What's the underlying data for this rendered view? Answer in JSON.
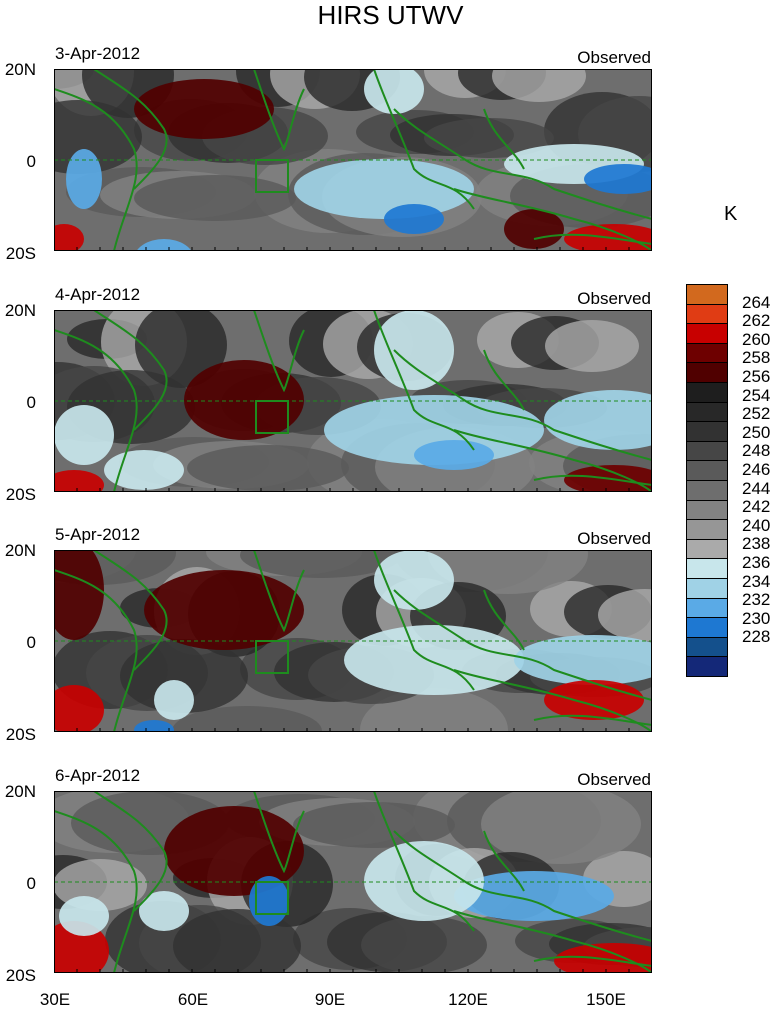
{
  "title": "HIRS UTWV",
  "unit_label": "K",
  "panels": [
    {
      "date": "3-Apr-2012",
      "label": "Observed"
    },
    {
      "date": "4-Apr-2012",
      "label": "Observed"
    },
    {
      "date": "5-Apr-2012",
      "label": "Observed"
    },
    {
      "date": "6-Apr-2012",
      "label": "Observed"
    }
  ],
  "y_ticks": [
    "20N",
    "0",
    "20S"
  ],
  "x_ticks": [
    "30E",
    "60E",
    "90E",
    "120E",
    "150E"
  ],
  "colorbar": {
    "levels": [
      "264",
      "262",
      "260",
      "258",
      "256",
      "254",
      "252",
      "250",
      "248",
      "246",
      "244",
      "242",
      "240",
      "238",
      "236",
      "234",
      "232",
      "230",
      "228"
    ],
    "colors": [
      "#d2691e",
      "#e03c14",
      "#c80000",
      "#6e0000",
      "#500000",
      "#1e1e1e",
      "#282828",
      "#323232",
      "#464646",
      "#5a5a5a",
      "#6e6e6e",
      "#828282",
      "#969696",
      "#aaaaaa",
      "#c8e6eb",
      "#a0d2e6",
      "#5aaae6",
      "#1e78d2",
      "#14508c",
      "#142878"
    ]
  },
  "colors": {
    "coast": "#1e8c1e",
    "equator": "#1e8c1e"
  }
}
